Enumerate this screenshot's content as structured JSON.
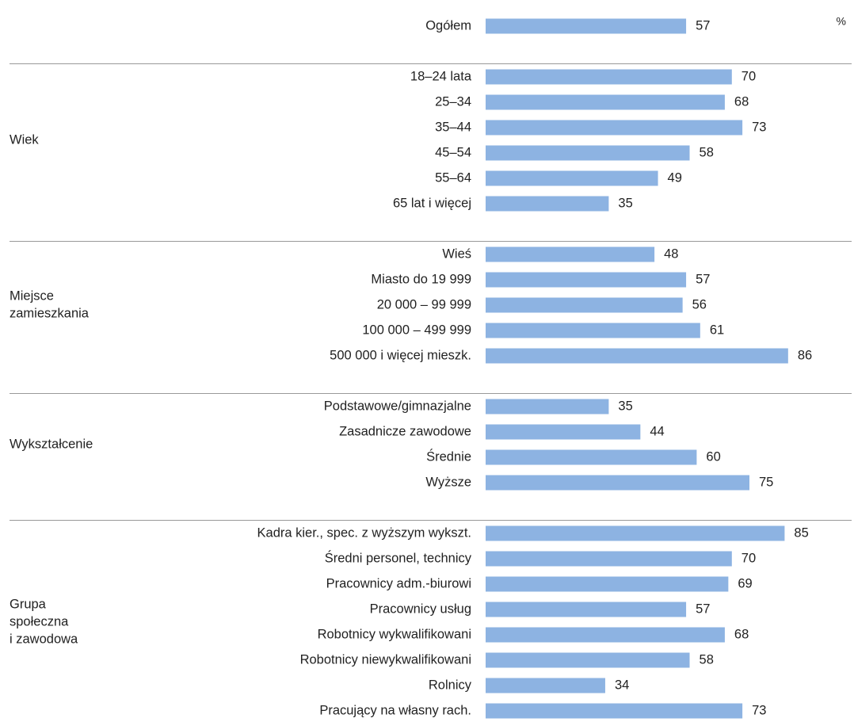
{
  "chart_data": {
    "type": "bar",
    "orientation": "horizontal",
    "unit": "%",
    "color": "#8db3e2",
    "xlim": [
      0,
      100
    ],
    "groups": [
      {
        "categories": [
          "Ogółem"
        ],
        "values": [
          57
        ]
      },
      {
        "name": [
          "Wiek"
        ],
        "categories": [
          "18–24 lata",
          "25–34",
          "35–44",
          "45–54",
          "55–64",
          "65 lat i więcej"
        ],
        "values": [
          70,
          68,
          73,
          58,
          49,
          35
        ]
      },
      {
        "name": [
          "Miejsce",
          "zamieszkania"
        ],
        "categories": [
          "Wieś",
          "Miasto do 19 999",
          "20 000 – 99 999",
          "100 000 – 499 999",
          "500 000 i więcej mieszk."
        ],
        "values": [
          48,
          57,
          56,
          61,
          86
        ]
      },
      {
        "name": [
          "Wykształcenie"
        ],
        "categories": [
          "Podstawowe/gimnazjalne",
          "Zasadnicze zawodowe",
          "Średnie",
          "Wyższe"
        ],
        "values": [
          35,
          44,
          60,
          75
        ]
      },
      {
        "name": [
          "Grupa",
          "społeczna",
          "i zawodowa"
        ],
        "categories": [
          "Kadra kier., spec. z wyższym wykszt.",
          "Średni personel, technicy",
          "Pracownicy adm.-biurowi",
          "Pracownicy usług",
          "Robotnicy wykwalifikowani",
          "Robotnicy niewykwalifikowani",
          "Rolnicy",
          "Pracujący na własny rach."
        ],
        "values": [
          85,
          70,
          69,
          57,
          68,
          58,
          34,
          73
        ]
      }
    ]
  }
}
